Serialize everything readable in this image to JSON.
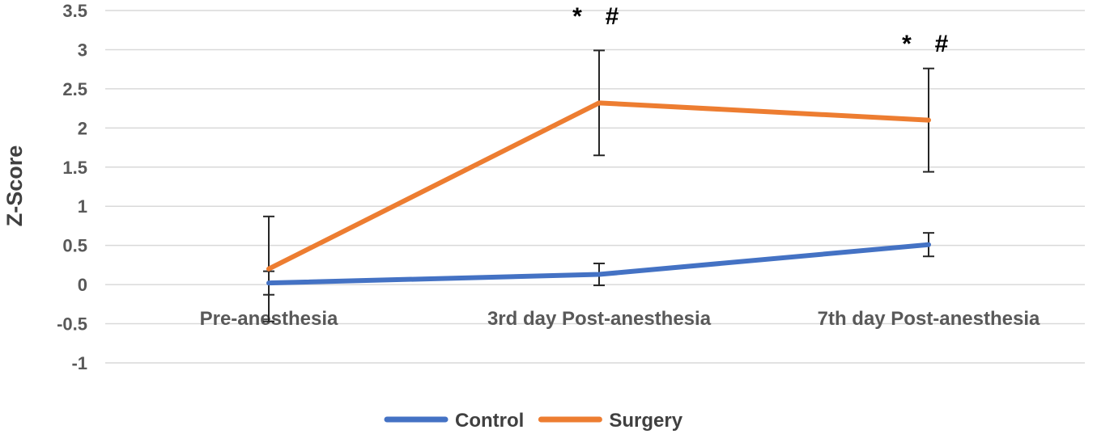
{
  "chart_data": {
    "type": "line",
    "title": "",
    "xlabel": "",
    "ylabel": "Z-Score",
    "ylim": [
      -1,
      3.5
    ],
    "y_ticks": [
      "3.5",
      "3",
      "2.5",
      "2",
      "1.5",
      "1",
      "0.5",
      "0",
      "-0.5",
      "-1"
    ],
    "y_tick_values": [
      3.5,
      3,
      2.5,
      2,
      1.5,
      1,
      0.5,
      0,
      -0.5,
      -1
    ],
    "categories": [
      "Pre-anesthesia",
      "3rd day Post-anesthesia",
      "7th day Post-anesthesia"
    ],
    "grid": true,
    "legend_position": "bottom",
    "series": [
      {
        "name": "Control",
        "color": "#4472c4",
        "values": [
          0.02,
          0.13,
          0.51
        ],
        "error": [
          0.15,
          0.14,
          0.15
        ]
      },
      {
        "name": "Surgery",
        "color": "#ed7d31",
        "values": [
          0.2,
          2.32,
          2.1
        ],
        "error": [
          0.67,
          0.67,
          0.66
        ]
      }
    ],
    "annotations": [
      {
        "category": 1,
        "y": 3.45,
        "text": "*"
      },
      {
        "category": 1,
        "y": 3.45,
        "text": "#"
      },
      {
        "category": 2,
        "y": 3.1,
        "text": "*"
      },
      {
        "category": 2,
        "y": 3.1,
        "text": "#"
      }
    ]
  }
}
